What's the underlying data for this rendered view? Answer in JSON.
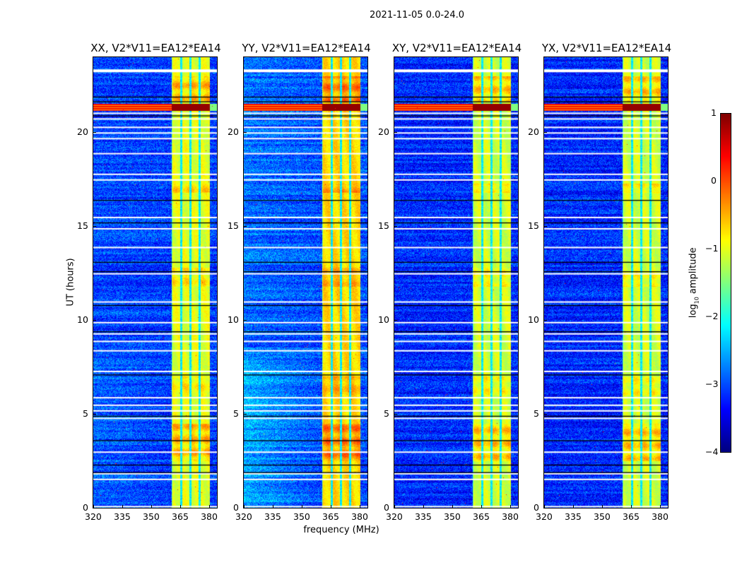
{
  "suptitle": "2021-11-05 0.0-24.0",
  "chart_data": {
    "type": "heatmap",
    "title": "2021-11-05 0.0-24.0",
    "xlabel": "frequency (MHz)",
    "ylabel": "UT (hours)",
    "xlim": [
      320,
      384
    ],
    "ylim": [
      0,
      24
    ],
    "xticks": [
      "320",
      "335",
      "350",
      "365",
      "380"
    ],
    "xtick_values": [
      320,
      335,
      350,
      365,
      380
    ],
    "yticks": [
      "0",
      "5",
      "10",
      "15",
      "20"
    ],
    "ytick_values": [
      0,
      5,
      10,
      15,
      20
    ],
    "panels": [
      {
        "title": "XX, V2*V11=EA12*EA14",
        "band_level": -1.0,
        "bg_level": -3.1,
        "low_freq_excess": 0.2
      },
      {
        "title": "YY, V2*V11=EA12*EA14",
        "band_level": -0.7,
        "bg_level": -3.0,
        "low_freq_excess": 0.5
      },
      {
        "title": "XY, V2*V11=EA12*EA14",
        "band_level": -1.1,
        "bg_level": -3.2,
        "low_freq_excess": 0.0
      },
      {
        "title": "YX, V2*V11=EA12*EA14",
        "band_level": -1.1,
        "bg_level": -3.2,
        "low_freq_excess": 0.0
      }
    ],
    "bright_band_mhz": [
      360.5,
      380.0
    ],
    "band_gaps_mhz": [
      365.2,
      370.0,
      375.0
    ],
    "flagged_white_hours": [
      23.35,
      21.05,
      20.75,
      20.3,
      20.0,
      19.7,
      18.9,
      17.8,
      17.5,
      15.5,
      14.9,
      13.9,
      12.5,
      11.0,
      9.9,
      9.3,
      8.9,
      8.4,
      7.3,
      5.9,
      5.5,
      5.2,
      4.8,
      3.0,
      1.85,
      1.55,
      0.1
    ],
    "black_row_hours": [
      21.9,
      21.65,
      20.9,
      16.4,
      15.2,
      13.1,
      12.6,
      10.8,
      9.4,
      7.1,
      4.9,
      3.6,
      2.3,
      1.9
    ],
    "rfi_rows_hours": [
      21.15,
      21.55
    ],
    "band_bright_periods_hours": [
      [
        2.5,
        4.5,
        0.6
      ],
      [
        6.0,
        7.0,
        0.3
      ],
      [
        11.8,
        12.8,
        0.3
      ],
      [
        16.8,
        17.3,
        0.4
      ],
      [
        21.6,
        23.0,
        0.6
      ]
    ],
    "colorbar": {
      "label": "log10 amplitude",
      "label_main": "log",
      "label_sub": "10",
      "label_rest": " amplitude",
      "range": [
        -4,
        1
      ],
      "ticks": [
        "1",
        "0",
        "−1",
        "−2",
        "−3",
        "−4"
      ],
      "tick_values": [
        1,
        0,
        -1,
        -2,
        -3,
        -4
      ],
      "colormap": "jet"
    }
  }
}
